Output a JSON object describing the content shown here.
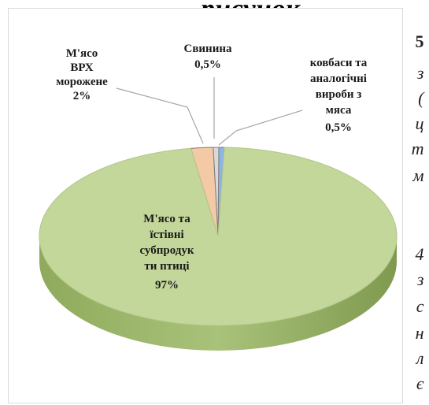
{
  "header_fragment": "рисунок",
  "side_text": [
    "5",
    "з",
    "(",
    "ц",
    "т",
    "м",
    "4",
    "з",
    "с",
    "н",
    "л",
    "є"
  ],
  "colors": {
    "poultry": "#c4d79b",
    "beef": "#f4c9a5",
    "pork": "#d9d9d9",
    "sausage": "#8eb4e3",
    "leader": "#a6a6a6"
  },
  "chart_data": {
    "type": "pie",
    "title": "",
    "slices": [
      {
        "label": [
          "М'ясо та",
          "їстівні",
          "субпродук",
          "ти птиці"
        ],
        "value_label": "97%",
        "value": 97
      },
      {
        "label": [
          "М'ясо",
          "ВРХ",
          "морожене"
        ],
        "value_label": "2%",
        "value": 2
      },
      {
        "label": [
          "Свинина"
        ],
        "value_label": "0,5%",
        "value": 0.5
      },
      {
        "label": [
          "ковбаси та",
          "аналогічні",
          "вироби з",
          "мяса"
        ],
        "value_label": "0,5%",
        "value": 0.5
      }
    ]
  }
}
